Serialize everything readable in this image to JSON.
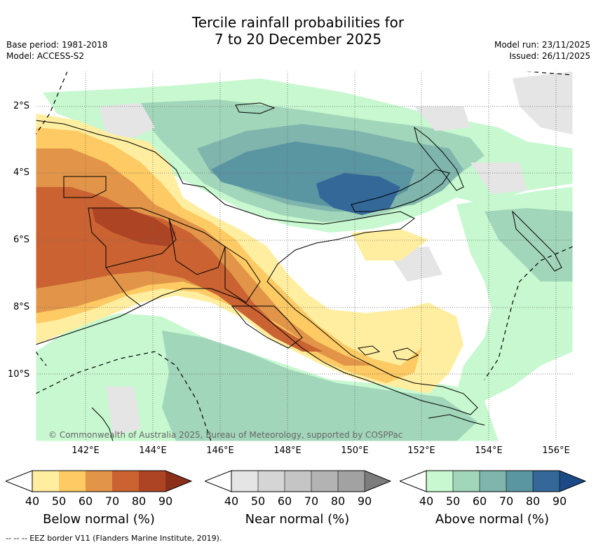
{
  "title_line1": "Tercile rainfall probabilities for",
  "title_line2": "7 to 20 December 2025",
  "base_period": "Base period: 1981-2018",
  "model": "Model: ACCESS-S2",
  "model_run": "Model run: 23/11/2025",
  "issued": "Issued: 26/11/2025",
  "lat_labels": [
    "2°S",
    "4°S",
    "6°S",
    "8°S",
    "10°S"
  ],
  "lon_labels": [
    "142°E",
    "144°E",
    "146°E",
    "148°E",
    "150°E",
    "152°E",
    "154°E",
    "156°E"
  ],
  "attribution": "© Commonwealth of Australia 2025, Bureau of Meteorology, supported by COSPPac",
  "colorbars": [
    {
      "label": "Below normal (%)",
      "ticks": [
        "40",
        "50",
        "60",
        "70",
        "80",
        "90"
      ],
      "colors": [
        "#ffeea0",
        "#fdca63",
        "#e29548",
        "#ca6232",
        "#ad4525",
        "#8b2f1a"
      ]
    },
    {
      "label": "Near normal (%)",
      "ticks": [
        "40",
        "50",
        "60",
        "70",
        "80",
        "90"
      ],
      "colors": [
        "#e5e5e5",
        "#d5d5d5",
        "#c5c5c5",
        "#b3b3b3",
        "#a2a2a2",
        "#7c7c7c"
      ]
    },
    {
      "label": "Above normal (%)",
      "ticks": [
        "40",
        "50",
        "60",
        "70",
        "80",
        "90"
      ],
      "colors": [
        "#c7f8cf",
        "#a2d6bb",
        "#7fb5ac",
        "#5a95a2",
        "#336899",
        "#1b4a86"
      ]
    }
  ],
  "footer": "--  --  -- EEZ border V11 (Flanders Marine Institute, 2019).",
  "colors": {
    "land_outline": "#000000",
    "grid": "#666666"
  }
}
